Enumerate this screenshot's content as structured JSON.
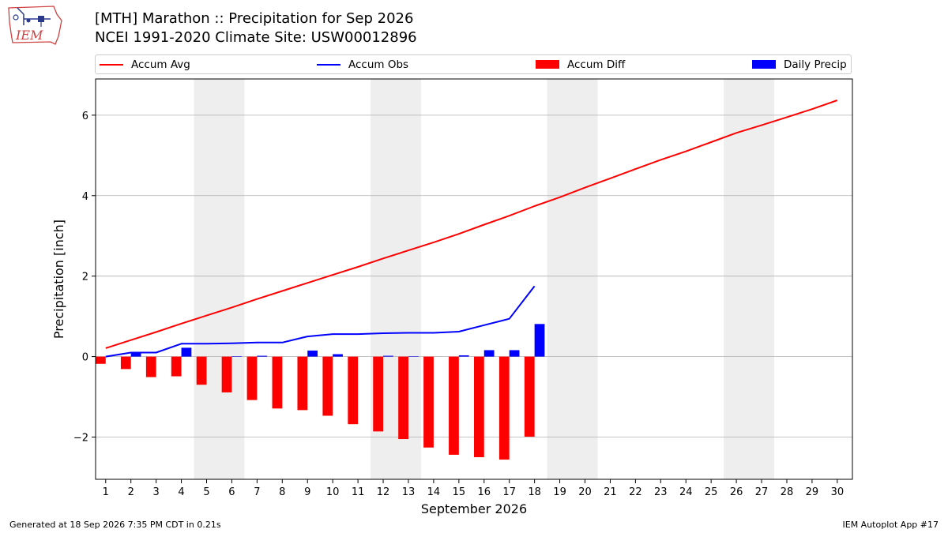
{
  "logo": {
    "text": "IEM",
    "icon": "iowa-weather-station-logo"
  },
  "header": {
    "title": "[MTH] Marathon :: Precipitation for Sep 2026",
    "subtitle": "NCEI 1991-2020 Climate Site: USW00012896"
  },
  "legend": {
    "accum_avg": "Accum Avg",
    "accum_obs": "Accum Obs",
    "accum_diff": "Accum Diff",
    "daily_precip": "Daily Precip"
  },
  "footer": {
    "left": "Generated at 18 Sep 2026 7:35 PM CDT in 0.21s",
    "right": "IEM Autoplot App #17"
  },
  "colors": {
    "accum_avg": "#ff0000",
    "accum_obs": "#0000ff",
    "accum_diff": "#ff0000",
    "daily_precip": "#0000ff",
    "weekend_shade": "#eeeeee",
    "grid": "#b0b0b0"
  },
  "chart_data": {
    "type": "bar",
    "xlabel": "September 2026",
    "ylabel": "Precipitation [inch]",
    "xlim": [
      0.6,
      30.6
    ],
    "ylim": [
      -3.05,
      6.9
    ],
    "x_ticks": [
      1,
      2,
      3,
      4,
      5,
      6,
      7,
      8,
      9,
      10,
      11,
      12,
      13,
      14,
      15,
      16,
      17,
      18,
      19,
      20,
      21,
      22,
      23,
      24,
      25,
      26,
      27,
      28,
      29,
      30
    ],
    "y_ticks": [
      -2,
      0,
      2,
      4,
      6
    ],
    "y_tick_labels": [
      "−2",
      "0",
      "2",
      "4",
      "6"
    ],
    "grid": "horizontal",
    "legend_position": "top",
    "weekend_shading": [
      [
        4.5,
        6.5
      ],
      [
        11.5,
        13.5
      ],
      [
        18.5,
        20.5
      ],
      [
        25.5,
        27.5
      ]
    ],
    "series": [
      {
        "name": "Accum Avg",
        "kind": "line",
        "x": [
          1,
          2,
          3,
          4,
          5,
          6,
          7,
          8,
          9,
          10,
          11,
          12,
          13,
          14,
          15,
          16,
          17,
          18,
          19,
          20,
          21,
          22,
          23,
          24,
          25,
          26,
          27,
          28,
          29,
          30
        ],
        "values": [
          0.21,
          0.41,
          0.61,
          0.82,
          1.02,
          1.22,
          1.43,
          1.63,
          1.83,
          2.03,
          2.23,
          2.44,
          2.64,
          2.84,
          3.05,
          3.28,
          3.5,
          3.74,
          3.96,
          4.2,
          4.43,
          4.66,
          4.89,
          5.1,
          5.33,
          5.56,
          5.75,
          5.95,
          6.15,
          6.37
        ]
      },
      {
        "name": "Accum Obs",
        "kind": "line",
        "x": [
          1,
          2,
          3,
          4,
          5,
          6,
          7,
          8,
          9,
          10,
          11,
          12,
          13,
          14,
          15,
          16,
          17,
          18
        ],
        "values": [
          0.0,
          0.1,
          0.1,
          0.32,
          0.32,
          0.33,
          0.35,
          0.35,
          0.5,
          0.56,
          0.56,
          0.58,
          0.59,
          0.59,
          0.62,
          0.78,
          0.94,
          1.75
        ]
      },
      {
        "name": "Accum Diff",
        "kind": "bar",
        "x_offset": -0.2,
        "x": [
          1,
          2,
          3,
          4,
          5,
          6,
          7,
          8,
          9,
          10,
          11,
          12,
          13,
          14,
          15,
          16,
          17,
          18
        ],
        "values": [
          -0.18,
          -0.31,
          -0.51,
          -0.49,
          -0.7,
          -0.89,
          -1.08,
          -1.29,
          -1.33,
          -1.47,
          -1.68,
          -1.86,
          -2.05,
          -2.26,
          -2.44,
          -2.5,
          -2.56,
          -1.99
        ]
      },
      {
        "name": "Daily Precip",
        "kind": "bar",
        "x_offset": 0.2,
        "x": [
          1,
          2,
          3,
          4,
          5,
          6,
          7,
          8,
          9,
          10,
          11,
          12,
          13,
          14,
          15,
          16,
          17,
          18
        ],
        "values": [
          0.0,
          0.1,
          0.0,
          0.22,
          0.0,
          0.01,
          0.02,
          0.0,
          0.15,
          0.06,
          0.0,
          0.02,
          0.01,
          0.0,
          0.03,
          0.16,
          0.16,
          0.81
        ]
      }
    ]
  }
}
